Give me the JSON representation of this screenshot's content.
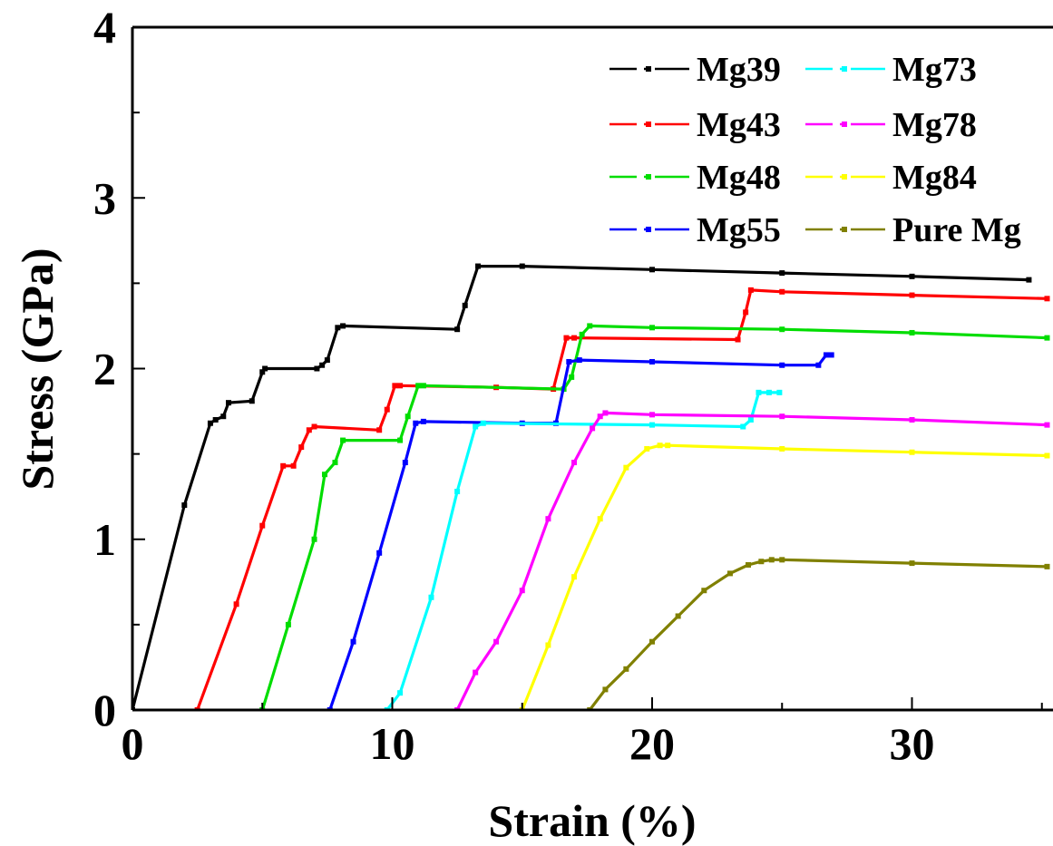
{
  "chart_data": {
    "type": "line",
    "xlabel": "Strain (%)",
    "ylabel": "Stress (GPa)",
    "xlim": [
      0,
      35.2
    ],
    "ylim": [
      0,
      4
    ],
    "x_ticks": [
      "0",
      "10",
      "20",
      "30"
    ],
    "y_ticks": [
      "0",
      "1",
      "2",
      "3",
      "4"
    ],
    "legend_position": "top-right",
    "series": [
      {
        "name": "Mg39",
        "color": "#000000",
        "x": [
          0,
          2.0,
          3.0,
          3.2,
          3.5,
          3.7,
          4.6,
          5.0,
          5.1,
          7.1,
          7.3,
          7.5,
          7.9,
          8.1,
          12.5,
          12.8,
          13.3,
          15.0,
          20.0,
          25.0,
          30.0,
          34.5
        ],
        "y": [
          0,
          1.2,
          1.68,
          1.7,
          1.72,
          1.8,
          1.81,
          1.98,
          2.0,
          2.0,
          2.02,
          2.05,
          2.24,
          2.25,
          2.23,
          2.37,
          2.6,
          2.6,
          2.58,
          2.56,
          2.54,
          2.52
        ]
      },
      {
        "name": "Mg43",
        "color": "#ff0000",
        "x": [
          2.5,
          4.0,
          5.0,
          5.8,
          6.2,
          6.5,
          6.8,
          7.0,
          9.5,
          9.8,
          10.1,
          10.3,
          14.0,
          16.2,
          16.7,
          17.0,
          23.3,
          23.6,
          23.8,
          25.0,
          30.0,
          35.2
        ],
        "y": [
          0,
          0.62,
          1.08,
          1.43,
          1.43,
          1.54,
          1.64,
          1.66,
          1.64,
          1.76,
          1.9,
          1.9,
          1.89,
          1.88,
          2.18,
          2.18,
          2.17,
          2.33,
          2.46,
          2.45,
          2.43,
          2.41
        ]
      },
      {
        "name": "Mg48",
        "color": "#00dd00",
        "x": [
          5.0,
          6.0,
          7.0,
          7.4,
          7.8,
          8.1,
          10.3,
          10.6,
          11.0,
          11.2,
          16.6,
          16.9,
          17.3,
          17.6,
          20.0,
          25.0,
          30.0,
          35.2
        ],
        "y": [
          0,
          0.5,
          1.0,
          1.38,
          1.45,
          1.58,
          1.58,
          1.72,
          1.9,
          1.9,
          1.88,
          1.95,
          2.2,
          2.25,
          2.24,
          2.23,
          2.21,
          2.18
        ]
      },
      {
        "name": "Mg55",
        "color": "#0000ff",
        "x": [
          7.6,
          8.5,
          9.5,
          10.5,
          10.9,
          11.2,
          15.0,
          16.3,
          16.8,
          17.2,
          20.0,
          25.0,
          26.4,
          26.7,
          26.9
        ],
        "y": [
          0,
          0.4,
          0.92,
          1.45,
          1.68,
          1.69,
          1.68,
          1.68,
          2.04,
          2.05,
          2.04,
          2.02,
          2.02,
          2.08,
          2.08
        ]
      },
      {
        "name": "Mg73",
        "color": "#00ffff",
        "x": [
          9.8,
          10.3,
          11.5,
          12.5,
          13.2,
          13.5,
          20.0,
          23.5,
          23.8,
          24.1,
          24.5,
          24.9
        ],
        "y": [
          0,
          0.1,
          0.66,
          1.28,
          1.66,
          1.68,
          1.67,
          1.66,
          1.7,
          1.86,
          1.86,
          1.86
        ]
      },
      {
        "name": "Mg78",
        "color": "#ff00ff",
        "x": [
          12.5,
          13.2,
          14.0,
          15.0,
          16.0,
          17.0,
          17.7,
          18.0,
          18.2,
          20.0,
          25.0,
          30.0,
          35.2
        ],
        "y": [
          0,
          0.22,
          0.4,
          0.7,
          1.12,
          1.45,
          1.65,
          1.72,
          1.74,
          1.73,
          1.72,
          1.7,
          1.67
        ]
      },
      {
        "name": "Mg84",
        "color": "#ffff00",
        "x": [
          15.0,
          16.0,
          17.0,
          18.0,
          19.0,
          19.8,
          20.3,
          20.6,
          25.0,
          30.0,
          35.2
        ],
        "y": [
          0,
          0.38,
          0.78,
          1.12,
          1.42,
          1.53,
          1.55,
          1.55,
          1.53,
          1.51,
          1.49
        ]
      },
      {
        "name": "Pure Mg",
        "color": "#808000",
        "x": [
          17.6,
          18.2,
          19.0,
          20.0,
          21.0,
          22.0,
          23.0,
          23.7,
          24.2,
          24.6,
          25.0,
          30.0,
          35.2
        ],
        "y": [
          0,
          0.12,
          0.24,
          0.4,
          0.55,
          0.7,
          0.8,
          0.85,
          0.87,
          0.88,
          0.88,
          0.86,
          0.84
        ]
      }
    ]
  }
}
